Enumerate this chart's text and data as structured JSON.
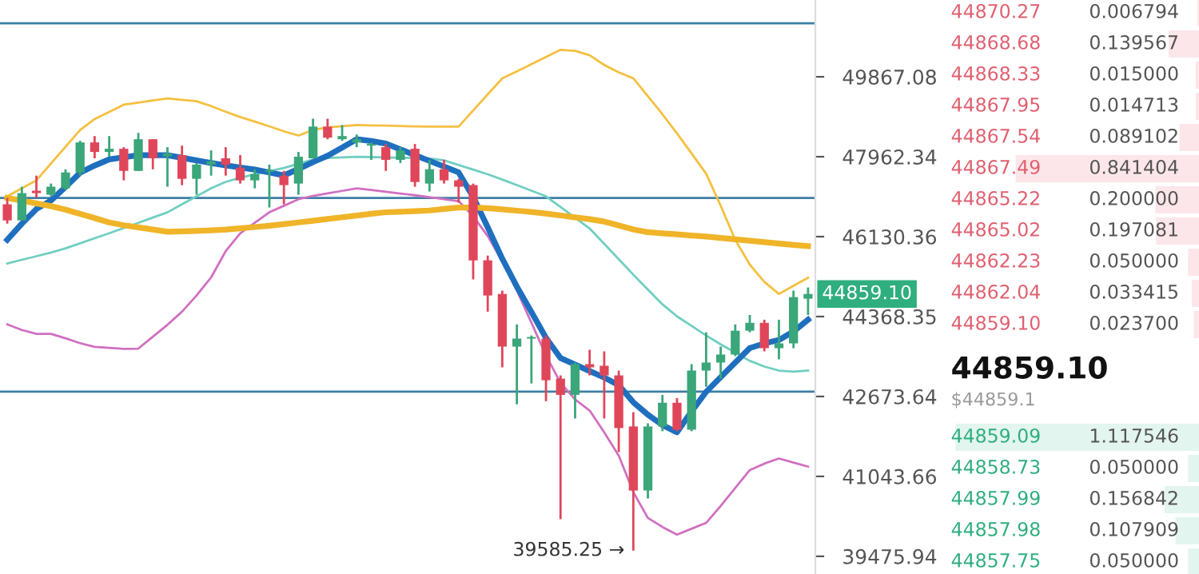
{
  "chart_data": [
    {
      "type": "candlestick",
      "categories": [
        null,
        null,
        null,
        null,
        null,
        null,
        null,
        null,
        null,
        null,
        null,
        null,
        null,
        null,
        null,
        null,
        null,
        null,
        null,
        null,
        null,
        null,
        null,
        null,
        null,
        null,
        null,
        null,
        null,
        null,
        null,
        null,
        null,
        null,
        null,
        null,
        null,
        null,
        null,
        null,
        null,
        null,
        null,
        null,
        null,
        null,
        null,
        null,
        null,
        null,
        null,
        null,
        null,
        null,
        null,
        null
      ],
      "ohlc": [
        [
          46863,
          47010,
          46423,
          46497
        ],
        [
          46497,
          47266,
          46497,
          47119
        ],
        [
          47175,
          47522,
          47010,
          47119
        ],
        [
          47083,
          47339,
          47046,
          47266
        ],
        [
          47229,
          47669,
          47193,
          47596
        ],
        [
          47596,
          48336,
          47522,
          48298
        ],
        [
          48298,
          48448,
          47925,
          48074
        ],
        [
          48074,
          48448,
          47962,
          48149
        ],
        [
          48149,
          48186,
          47413,
          47632
        ],
        [
          47632,
          48522,
          47632,
          48373
        ],
        [
          48373,
          48373,
          47669,
          47925
        ],
        [
          47975,
          48186,
          47266,
          48037
        ],
        [
          47999,
          48223,
          47303,
          47449
        ],
        [
          47449,
          47815,
          47083,
          47779
        ],
        [
          47779,
          48111,
          47522,
          47852
        ],
        [
          47925,
          48186,
          47522,
          47779
        ],
        [
          47706,
          47999,
          47339,
          47413
        ],
        [
          47413,
          47669,
          47229,
          47559
        ],
        [
          47614,
          47779,
          46790,
          47650
        ],
        [
          47522,
          47632,
          46863,
          47303
        ],
        [
          47339,
          48074,
          47083,
          47962
        ],
        [
          47925,
          48859,
          47925,
          48672
        ],
        [
          48672,
          48859,
          48373,
          48410
        ],
        [
          48373,
          48709,
          48336,
          48448
        ],
        [
          48298,
          48484,
          48186,
          48373
        ],
        [
          48223,
          48298,
          47889,
          48261
        ],
        [
          48186,
          48261,
          47632,
          47889
        ],
        [
          47889,
          48186,
          47815,
          48111
        ],
        [
          48149,
          48261,
          47266,
          47376
        ],
        [
          47339,
          47889,
          47156,
          47669
        ],
        [
          47669,
          47889,
          47339,
          47413
        ],
        [
          47413,
          47449,
          46900,
          47266
        ],
        [
          47303,
          47339,
          45179,
          45601
        ],
        [
          45601,
          45707,
          44474,
          44826
        ],
        [
          44861,
          44932,
          43284,
          43724
        ],
        [
          43724,
          44199,
          42511,
          43894
        ],
        [
          43894,
          43961,
          42945,
          43928
        ],
        [
          43894,
          43961,
          42576,
          43012
        ],
        [
          43046,
          43114,
          40197,
          42707
        ],
        [
          42707,
          43385,
          42218,
          43351
        ],
        [
          43351,
          43656,
          43114,
          43284
        ],
        [
          43317,
          43622,
          42218,
          43114
        ],
        [
          43114,
          43216,
          41533,
          42022
        ],
        [
          42055,
          42348,
          39585.25,
          40762
        ],
        [
          40762,
          42120,
          40605,
          42055
        ],
        [
          42055,
          42707,
          41957,
          42543
        ],
        [
          42543,
          42641,
          41957,
          41989
        ],
        [
          41989,
          43351,
          41957,
          43216
        ],
        [
          43216,
          44029,
          42877,
          43385
        ],
        [
          43385,
          43724,
          43046,
          43555
        ],
        [
          43555,
          44199,
          43521,
          44063
        ],
        [
          44063,
          44403,
          44029,
          44233
        ],
        [
          44233,
          44300,
          43622,
          43690
        ],
        [
          43690,
          44300,
          43453,
          43792
        ],
        [
          43792,
          44932,
          43690,
          44791
        ],
        [
          44756,
          45002,
          44403,
          44859.1
        ]
      ],
      "colors": [
        "#e0465a",
        "#3aa67a",
        "#e0465a",
        "#3aa67a",
        "#3aa67a",
        "#3aa67a",
        "#e0465a",
        "#3aa67a",
        "#e0465a",
        "#3aa67a",
        "#e0465a",
        "#3aa67a",
        "#e0465a",
        "#3aa67a",
        "#3aa67a",
        "#e0465a",
        "#e0465a",
        "#3aa67a",
        "#3aa67a",
        "#e0465a",
        "#3aa67a",
        "#3aa67a",
        "#e0465a",
        "#3aa67a",
        "#3aa67a",
        "#3aa67a",
        "#e0465a",
        "#3aa67a",
        "#e0465a",
        "#3aa67a",
        "#e0465a",
        "#e0465a",
        "#e0465a",
        "#e0465a",
        "#e0465a",
        "#3aa67a",
        "#3aa67a",
        "#e0465a",
        "#e0465a",
        "#3aa67a",
        "#e0465a",
        "#e0465a",
        "#e0465a",
        "#e0465a",
        "#3aa67a",
        "#3aa67a",
        "#e0465a",
        "#3aa67a",
        "#3aa67a",
        "#3aa67a",
        "#3aa67a",
        "#3aa67a",
        "#e0465a",
        "#3aa67a",
        "#3aa67a",
        "#3aa67a"
      ],
      "series": [
        {
          "type": "line",
          "color": "#1f6fbf",
          "values": [
            46060,
            46424,
            46755,
            46949,
            47262,
            47589,
            47756,
            47899,
            47949,
            47999,
            47999,
            47999,
            47938,
            47877,
            47816,
            47760,
            47712,
            47662,
            47596,
            47529,
            47676,
            47838,
            47984,
            48176,
            48373,
            48331,
            48271,
            48135,
            47999,
            47865,
            47731,
            47596,
            47030,
            46340,
            45636,
            45022,
            44466,
            43910,
            43480,
            43343,
            43206,
            43069,
            42909,
            42553,
            42297,
            42084,
            41935,
            42364,
            42769,
            43077,
            43385,
            43693,
            43791,
            43864,
            44046,
            44300
          ]
        },
        {
          "type": "line",
          "color": "#f0b429",
          "values": [
            47010,
            46947,
            46884,
            46821,
            46742,
            46645,
            46549,
            46452,
            46388,
            46339,
            46289,
            46240,
            46250,
            46260,
            46271,
            46289,
            46318,
            46347,
            46376,
            46411,
            46450,
            46490,
            46529,
            46569,
            46608,
            46648,
            46682,
            46694,
            46706,
            46723,
            46756,
            46790,
            46790,
            46775,
            46747,
            46718,
            46689,
            46651,
            46609,
            46567,
            46526,
            46470,
            46382,
            46293,
            46230,
            46206,
            46181,
            46157,
            46132,
            46102,
            46070,
            46039,
            46007,
            45976,
            45944,
            45919
          ]
        },
        {
          "type": "line",
          "color": "#f5c040",
          "values": [
            47046,
            47230,
            47413,
            47804,
            48196,
            48590,
            48850,
            49023,
            49195,
            49245,
            49294,
            49344,
            49310,
            49276,
            49161,
            49027,
            48900,
            48789,
            48678,
            48560,
            48461,
            48594,
            48653,
            48681,
            48709,
            48701,
            48693,
            48686,
            48678,
            48672,
            48672,
            48672,
            49058,
            49444,
            49830,
            50002,
            50174,
            50351,
            50527,
            50503,
            50393,
            50156,
            49974,
            49830,
            49397,
            48964,
            48511,
            48040,
            47569,
            46829,
            46060,
            45506,
            45125,
            44861,
            45038,
            45214
          ]
        },
        {
          "type": "line",
          "color": "#6fcfc0",
          "values": [
            45531,
            45612,
            45692,
            45773,
            45869,
            45981,
            46094,
            46206,
            46323,
            46442,
            46561,
            46680,
            46863,
            47046,
            47229,
            47378,
            47474,
            47557,
            47628,
            47699,
            47796,
            47895,
            47935,
            47948,
            47962,
            47954,
            47947,
            47939,
            47931,
            47922,
            47878,
            47770,
            47662,
            47554,
            47432,
            47303,
            47175,
            47046,
            46802,
            46558,
            46314,
            45970,
            45626,
            45282,
            44955,
            44634,
            44372,
            44167,
            43962,
            43772,
            43597,
            43421,
            43300,
            43216,
            43195,
            43216
          ]
        },
        {
          "type": "line",
          "color": "#d070c0",
          "values": [
            44199,
            44079,
            43995,
            43995,
            43901,
            43797,
            43718,
            43697,
            43675,
            43681,
            43936,
            44190,
            44474,
            44826,
            45223,
            45804,
            46203,
            46442,
            46680,
            46830,
            46980,
            47056,
            47114,
            47171,
            47229,
            47190,
            47150,
            47111,
            47070,
            47025,
            46981,
            46936,
            46594,
            46142,
            45580,
            44935,
            44236,
            43535,
            42959,
            42612,
            42381,
            41935,
            41460,
            40730,
            40221,
            40044,
            39895,
            40010,
            40124,
            40456,
            40814,
            41171,
            41300,
            41403,
            41322,
            41240
          ]
        }
      ],
      "log": true,
      "ylim": [
        39137,
        51769
      ],
      "yticks": [
        49867.08,
        47962.34,
        46130.36,
        44368.35,
        42673.64,
        41043.66,
        39475.94
      ],
      "ref_lines": [
        {
          "axis": "y",
          "value": 51186,
          "color": "#3c7fa6"
        },
        {
          "axis": "y",
          "value": 47010,
          "color": "#3c7fa6"
        },
        {
          "axis": "y",
          "value": 42775,
          "color": "#3c7fa6"
        }
      ],
      "annotations": [
        "39585.25 →",
        "44859.10"
      ]
    },
    {
      "type": "bar",
      "orientation": "horizontal",
      "values": [
        0.006794,
        0.139567,
        0.015,
        0.014713,
        0.089102,
        0.841404,
        0.2,
        0.197081,
        0.05,
        0.033415,
        0.0237,
        null,
        1.117546,
        0.05,
        0.156842,
        0.107909,
        0.05
      ],
      "categories": [
        "44870.27",
        "44868.68",
        "44868.33",
        "44867.95",
        "44867.54",
        "44867.49",
        "44865.22",
        "44865.02",
        "44862.23",
        "44862.04",
        "44859.10",
        null,
        "44859.09",
        "44858.73",
        "44857.99",
        "44857.98",
        "44857.75"
      ],
      "value_labels": [
        "0.006794",
        "0.139567",
        "0.015000",
        "0.014713",
        "0.089102",
        "0.841404",
        "0.200000",
        "0.197081",
        "0.050000",
        "0.033415",
        "0.023700",
        null,
        "1.117546",
        "0.050000",
        "0.156842",
        "0.107909",
        "0.050000"
      ],
      "colors": [
        "#fce6e9",
        "#fce6e9",
        "#fce6e9",
        "#fce6e9",
        "#fce6e9",
        "#fce6e9",
        "#fce6e9",
        "#fce6e9",
        "#fce6e9",
        "#fce6e9",
        "#fce6e9",
        null,
        "#e2f5ee",
        "#e2f5ee",
        "#e2f5ee",
        "#e2f5ee",
        "#e2f5ee"
      ],
      "annotations": [
        "44859.10",
        "$44859.1"
      ]
    }
  ]
}
